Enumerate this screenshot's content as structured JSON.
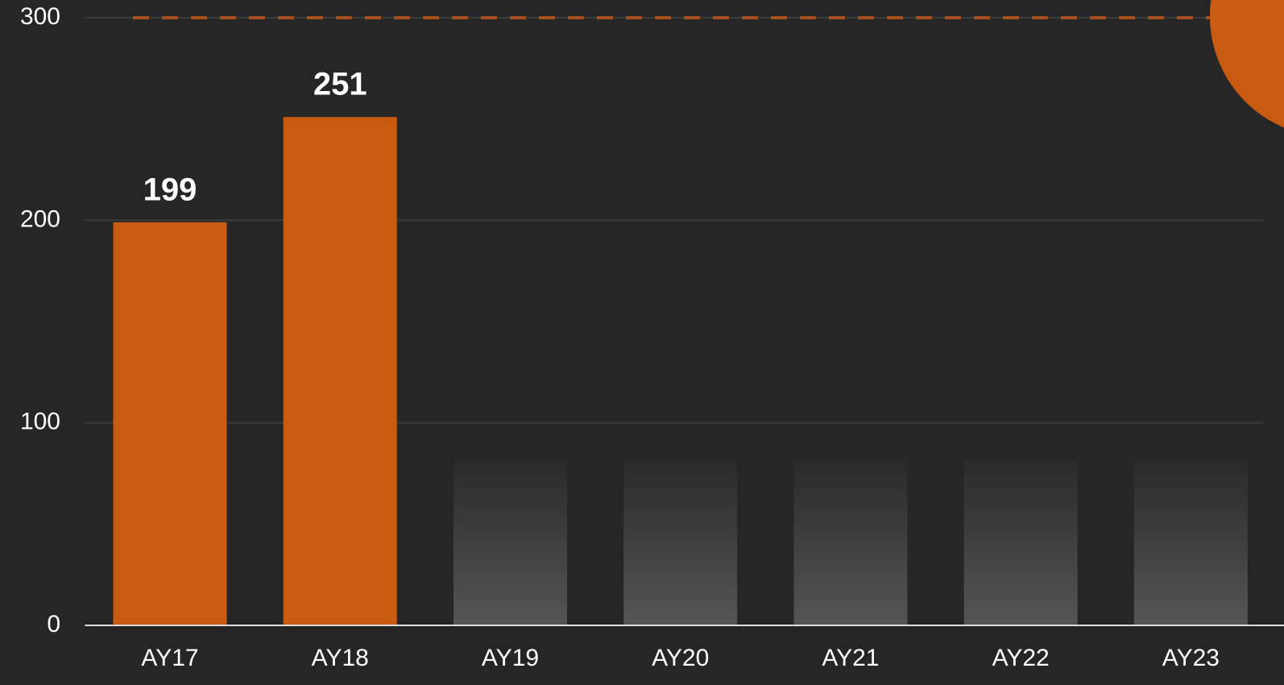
{
  "chart_data": {
    "type": "bar",
    "categories": [
      "AY17",
      "AY18",
      "AY19",
      "AY20",
      "AY21",
      "AY22",
      "AY23"
    ],
    "values": [
      199,
      251,
      null,
      null,
      null,
      null,
      null
    ],
    "color": "#c85a12",
    "ylim": [
      0,
      300
    ],
    "yticks": [
      0,
      100,
      200,
      300
    ],
    "grid": true,
    "reference_line": 300
  }
}
